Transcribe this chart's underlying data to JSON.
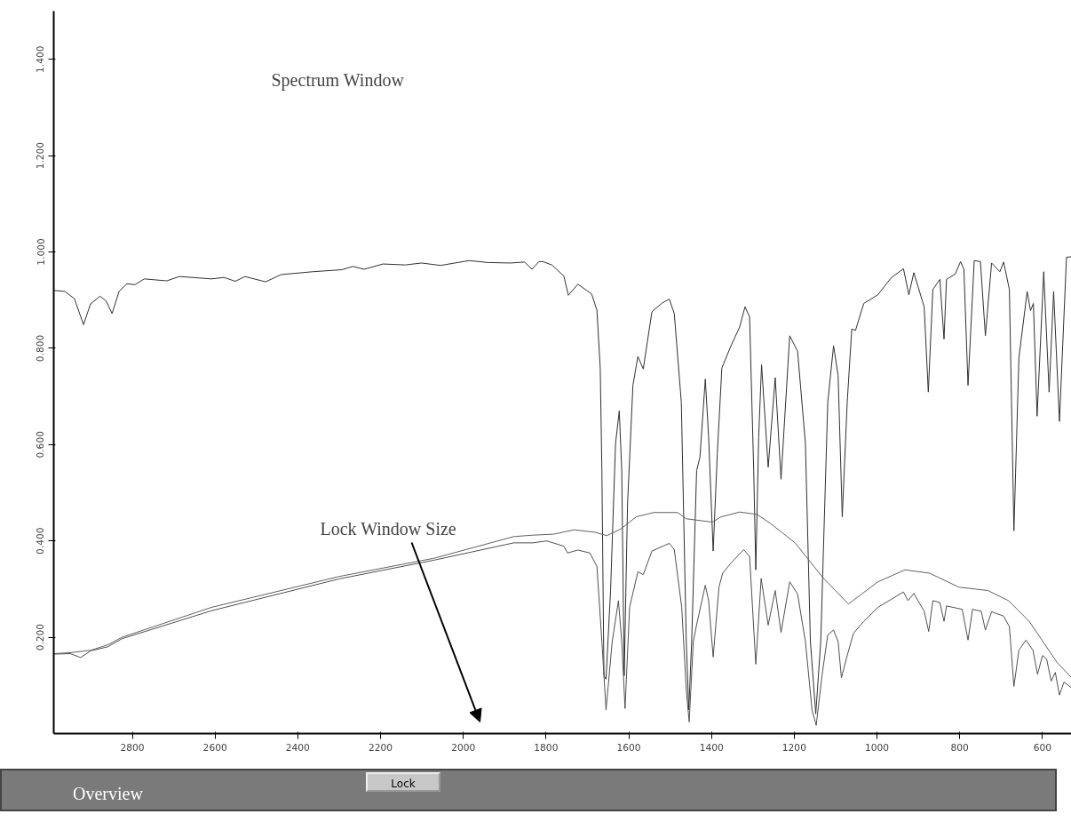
{
  "chart_data": {
    "type": "line",
    "xlim": [
      2990,
      530
    ],
    "ylim": [
      0,
      1.5
    ],
    "xticks": [
      2800,
      2600,
      2400,
      2200,
      2000,
      1800,
      1600,
      1400,
      1200,
      1000,
      800,
      600
    ],
    "yticks": [
      {
        "value": 0.2,
        "label": "0.200"
      },
      {
        "value": 0.4,
        "label": "0.400"
      },
      {
        "value": 0.6,
        "label": "0.600"
      },
      {
        "value": 0.8,
        "label": "0.800"
      },
      {
        "value": 1.0,
        "label": "1.000"
      },
      {
        "value": 1.2,
        "label": "1.200"
      },
      {
        "value": 1.4,
        "label": "1.400"
      }
    ],
    "grid": false,
    "annotations": [
      "Spectrum Window",
      "Lock Window Size",
      "Overview",
      "Lock"
    ],
    "series": [
      {
        "color": "#303030",
        "x": [
          2990,
          2963,
          2940,
          2918,
          2901,
          2878,
          2863,
          2849,
          2832,
          2813,
          2794,
          2771,
          2717,
          2686,
          2609,
          2578,
          2551,
          2528,
          2478,
          2440,
          2363,
          2294,
          2267,
          2240,
          2194,
          2140,
          2101,
          2055,
          1986,
          1940,
          1886,
          1852,
          1834,
          1817,
          1808,
          1786,
          1757,
          1746,
          1723,
          1690,
          1677,
          1669,
          1665,
          1660,
          1655,
          1644,
          1632,
          1623,
          1617,
          1611,
          1603,
          1590,
          1578,
          1565,
          1544,
          1519,
          1502,
          1490,
          1473,
          1461,
          1455,
          1448,
          1436,
          1428,
          1415,
          1407,
          1396,
          1386,
          1375,
          1353,
          1332,
          1319,
          1308,
          1298,
          1293,
          1286,
          1279,
          1263,
          1246,
          1232,
          1211,
          1192,
          1173,
          1161,
          1148,
          1136,
          1119,
          1105,
          1094,
          1084,
          1072,
          1061,
          1052,
          1032,
          998,
          965,
          936,
          923,
          911,
          886,
          876,
          865,
          848,
          838,
          832,
          811,
          798,
          790,
          780,
          765,
          750,
          738,
          723,
          703,
          694,
          680,
          669,
          657,
          637,
          629,
          622,
          613,
          597,
          584,
          573,
          559,
          542,
          530
        ],
        "values": [
          0.92,
          0.918,
          0.903,
          0.849,
          0.892,
          0.908,
          0.898,
          0.872,
          0.918,
          0.934,
          0.932,
          0.944,
          0.94,
          0.949,
          0.944,
          0.947,
          0.939,
          0.949,
          0.938,
          0.953,
          0.959,
          0.963,
          0.97,
          0.964,
          0.975,
          0.973,
          0.977,
          0.972,
          0.982,
          0.978,
          0.977,
          0.979,
          0.964,
          0.98,
          0.98,
          0.973,
          0.95,
          0.91,
          0.933,
          0.913,
          0.879,
          0.759,
          0.546,
          0.12,
          0.113,
          0.297,
          0.602,
          0.67,
          0.546,
          0.12,
          0.475,
          0.723,
          0.783,
          0.757,
          0.876,
          0.894,
          0.902,
          0.872,
          0.688,
          0.191,
          0.049,
          0.191,
          0.546,
          0.574,
          0.736,
          0.616,
          0.379,
          0.581,
          0.759,
          0.805,
          0.844,
          0.886,
          0.865,
          0.546,
          0.34,
          0.616,
          0.766,
          0.553,
          0.739,
          0.528,
          0.826,
          0.794,
          0.602,
          0.191,
          0.041,
          0.191,
          0.688,
          0.805,
          0.744,
          0.45,
          0.688,
          0.84,
          0.837,
          0.893,
          0.911,
          0.947,
          0.965,
          0.911,
          0.957,
          0.886,
          0.709,
          0.922,
          0.943,
          0.819,
          0.943,
          0.954,
          0.98,
          0.964,
          0.723,
          0.982,
          0.98,
          0.826,
          0.977,
          0.959,
          0.979,
          0.922,
          0.421,
          0.78,
          0.918,
          0.878,
          0.893,
          0.659,
          0.959,
          0.709,
          0.918,
          0.648,
          0.989,
          0.99
        ]
      },
      {
        "color": "#505050",
        "x": [
          2990,
          2950,
          2925,
          2900,
          2860,
          2825,
          2609,
          2301,
          2071,
          1878,
          1832,
          1798,
          1757,
          1748,
          1723,
          1694,
          1677,
          1665,
          1655,
          1640,
          1625,
          1617,
          1609,
          1598,
          1578,
          1565,
          1544,
          1502,
          1490,
          1472,
          1461,
          1454,
          1444,
          1436,
          1415,
          1407,
          1396,
          1382,
          1373,
          1353,
          1322,
          1308,
          1293,
          1280,
          1263,
          1246,
          1232,
          1211,
          1192,
          1173,
          1157,
          1147,
          1133,
          1119,
          1105,
          1094,
          1086,
          1072,
          1057,
          1032,
          998,
          965,
          936,
          925,
          911,
          886,
          875,
          865,
          848,
          838,
          832,
          794,
          780,
          769,
          748,
          738,
          723,
          694,
          680,
          669,
          657,
          640,
          623,
          612,
          600,
          590,
          579,
          569,
          559,
          548,
          530
        ],
        "values": [
          0.165,
          0.166,
          0.158,
          0.172,
          0.18,
          0.197,
          0.255,
          0.321,
          0.36,
          0.396,
          0.396,
          0.4,
          0.389,
          0.375,
          0.381,
          0.375,
          0.347,
          0.191,
          0.049,
          0.191,
          0.276,
          0.191,
          0.052,
          0.262,
          0.336,
          0.33,
          0.379,
          0.395,
          0.382,
          0.262,
          0.091,
          0.024,
          0.191,
          0.226,
          0.308,
          0.276,
          0.159,
          0.304,
          0.333,
          0.354,
          0.382,
          0.368,
          0.144,
          0.322,
          0.225,
          0.297,
          0.21,
          0.315,
          0.29,
          0.191,
          0.049,
          0.017,
          0.12,
          0.205,
          0.215,
          0.191,
          0.116,
          0.162,
          0.208,
          0.233,
          0.262,
          0.279,
          0.294,
          0.276,
          0.291,
          0.254,
          0.212,
          0.276,
          0.272,
          0.233,
          0.265,
          0.258,
          0.194,
          0.258,
          0.254,
          0.215,
          0.253,
          0.244,
          0.222,
          0.098,
          0.173,
          0.194,
          0.173,
          0.123,
          0.162,
          0.155,
          0.109,
          0.127,
          0.08,
          0.107,
          0.095
        ]
      },
      {
        "color": "#606060",
        "x": [
          2990,
          2950,
          2900,
          2860,
          2825,
          2609,
          2301,
          2071,
          1878,
          1832,
          1782,
          1732,
          1682,
          1653,
          1619,
          1582,
          1540,
          1482,
          1461,
          1398,
          1377,
          1332,
          1290,
          1257,
          1198,
          1132,
          1069,
          998,
          932,
          873,
          802,
          732,
          682,
          632,
          565,
          530
        ],
        "values": [
          0.166,
          0.168,
          0.173,
          0.184,
          0.2,
          0.262,
          0.326,
          0.364,
          0.409,
          0.412,
          0.414,
          0.423,
          0.418,
          0.411,
          0.425,
          0.45,
          0.459,
          0.459,
          0.446,
          0.439,
          0.45,
          0.46,
          0.455,
          0.436,
          0.396,
          0.325,
          0.269,
          0.315,
          0.34,
          0.333,
          0.304,
          0.297,
          0.276,
          0.233,
          0.148,
          0.116
        ]
      }
    ]
  }
}
